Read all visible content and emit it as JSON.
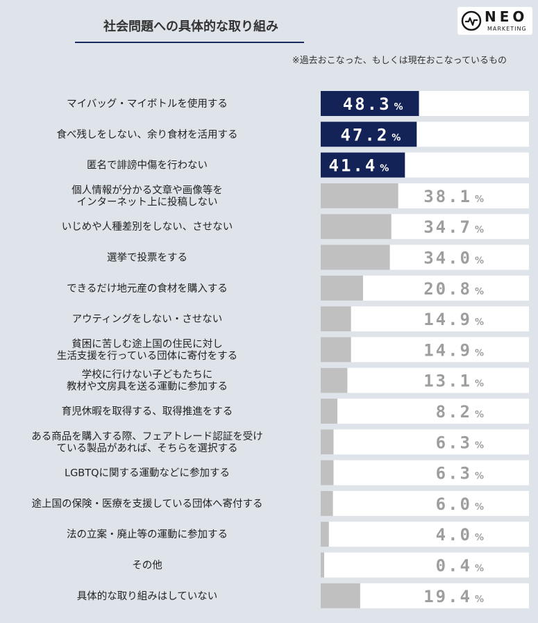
{
  "header": {
    "title": "社会問題への具体的な取り組み",
    "note": "※過去おこなった、もしくは現在おこなっているもの"
  },
  "logo": {
    "name": "NEO",
    "subtitle": "MARKETING"
  },
  "colors": {
    "background": "#dfe3ea",
    "highlight_bar": "#142357",
    "normal_bar": "#c0c0c0",
    "track": "#ffffff",
    "accent_line": "#1b2a5e"
  },
  "chart_data": {
    "type": "bar",
    "orientation": "horizontal",
    "unit": "%",
    "xlim": [
      0,
      100
    ],
    "highlight_top_n": 3,
    "categories": [
      "マイバッグ・マイボトルを使用する",
      "食べ残しをしない、余り食材を活用する",
      "匿名で誹謗中傷を行わない",
      "個人情報が分かる文章や画像等を\nインターネット上に投稿しない",
      "いじめや人種差別をしない、させない",
      "選挙で投票をする",
      "できるだけ地元産の食材を購入する",
      "アウティングをしない・させない",
      "貧困に苦しむ途上国の住民に対し\n生活支援を行っている団体に寄付をする",
      "学校に行けない子どもたちに\n教材や文房具を送る運動に参加する",
      "育児休暇を取得する、取得推進をする",
      "ある商品を購入する際、フェアトレード認証を受け\nている製品があれば、そちらを選択する",
      "LGBTQに関する運動などに参加する",
      "途上国の保険・医療を支援している団体へ寄付する",
      "法の立案・廃止等の運動に参加する",
      "その他",
      "具体的な取り組みはしていない"
    ],
    "values": [
      48.3,
      47.2,
      41.4,
      38.1,
      34.7,
      34.0,
      20.8,
      14.9,
      14.9,
      13.1,
      8.2,
      6.3,
      6.3,
      6.0,
      4.0,
      0.4,
      19.4
    ],
    "value_labels": [
      "48.3",
      "47.2",
      "41.4",
      "38.1",
      "34.7",
      "34.0",
      "20.8",
      "14.9",
      "14.9",
      "13.1",
      "8.2",
      "6.3",
      "6.3",
      "6.0",
      "4.0",
      "0.4",
      "19.4"
    ]
  }
}
